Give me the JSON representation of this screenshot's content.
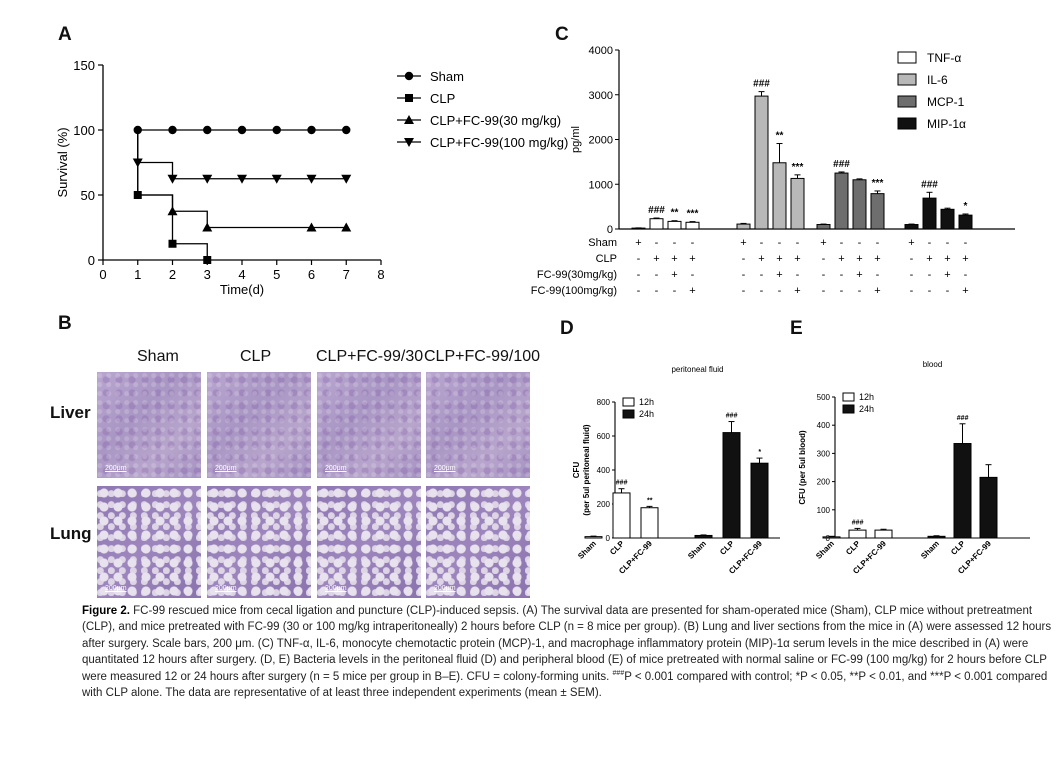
{
  "panels": {
    "a": "A",
    "b": "B",
    "c": "C",
    "d": "D",
    "e": "E"
  },
  "survival": {
    "chart_data": {
      "type": "line",
      "title": "",
      "xlabel": "Time(d)",
      "ylabel": "Survival (%)",
      "xlim": [
        0,
        8
      ],
      "ylim": [
        0,
        150
      ],
      "x_ticks": [
        "0",
        "1",
        "2",
        "3",
        "4",
        "5",
        "6",
        "7",
        "8"
      ],
      "y_ticks": [
        "0",
        "50",
        "100",
        "150"
      ],
      "series": [
        {
          "name": "Sham",
          "marker": "circle",
          "steps": [
            [
              1,
              100
            ],
            [
              7,
              100
            ]
          ],
          "points": [
            [
              1,
              100
            ],
            [
              2,
              100
            ],
            [
              3,
              100
            ],
            [
              4,
              100
            ],
            [
              5,
              100
            ],
            [
              6,
              100
            ],
            [
              7,
              100
            ]
          ]
        },
        {
          "name": "CLP",
          "marker": "square",
          "steps": [
            [
              1,
              100
            ],
            [
              1,
              50
            ],
            [
              2,
              50
            ],
            [
              2,
              12.5
            ],
            [
              3,
              12.5
            ],
            [
              3,
              0
            ]
          ],
          "points": [
            [
              1,
              50
            ],
            [
              2,
              12.5
            ],
            [
              3,
              0
            ]
          ]
        },
        {
          "name": "CLP+FC-99(30 mg/kg)",
          "marker": "triangle-up",
          "steps": [
            [
              1,
              100
            ],
            [
              1,
              50
            ],
            [
              2,
              50
            ],
            [
              2,
              37.5
            ],
            [
              3,
              37.5
            ],
            [
              3,
              25
            ],
            [
              7,
              25
            ]
          ],
          "points": [
            [
              2,
              37.5
            ],
            [
              3,
              25
            ],
            [
              6,
              25
            ],
            [
              7,
              25
            ]
          ]
        },
        {
          "name": "CLP+FC-99(100 mg/kg)",
          "marker": "triangle-down",
          "steps": [
            [
              1,
              100
            ],
            [
              1,
              75
            ],
            [
              2,
              75
            ],
            [
              2,
              62.5
            ],
            [
              7,
              62.5
            ]
          ],
          "points": [
            [
              1,
              75
            ],
            [
              2,
              62.5
            ],
            [
              3,
              62.5
            ],
            [
              4,
              62.5
            ],
            [
              5,
              62.5
            ],
            [
              6,
              62.5
            ],
            [
              7,
              62.5
            ]
          ]
        }
      ]
    }
  },
  "cytokines": {
    "chart_data": {
      "type": "bar",
      "ylabel": "pg/ml",
      "ylim": [
        0,
        4000
      ],
      "y_ticks": [
        "0",
        "1000",
        "2000",
        "3000",
        "4000"
      ],
      "series": [
        {
          "name": "TNF-α",
          "fill": "#ffffff",
          "values": [
            20,
            230,
            170,
            150
          ],
          "err": [
            5,
            15,
            15,
            15
          ],
          "sig": [
            "",
            "###",
            "**",
            "***"
          ]
        },
        {
          "name": "IL-6",
          "fill": "#b8b8b8",
          "values": [
            110,
            2970,
            1480,
            1130
          ],
          "err": [
            15,
            100,
            430,
            80
          ],
          "sig": [
            "",
            "###",
            "**",
            "***"
          ]
        },
        {
          "name": "MCP-1",
          "fill": "#6e6e6e",
          "values": [
            100,
            1250,
            1100,
            790
          ],
          "err": [
            10,
            25,
            20,
            60
          ],
          "sig": [
            "",
            "###",
            "",
            "***"
          ]
        },
        {
          "name": "MIP-1α",
          "fill": "#111111",
          "values": [
            100,
            690,
            440,
            310
          ],
          "err": [
            10,
            130,
            25,
            25
          ],
          "sig": [
            "",
            "###",
            "",
            "*"
          ]
        }
      ],
      "row_labels": [
        "Sham",
        "CLP",
        "FC-99(30mg/kg)",
        "FC-99(100mg/kg)"
      ],
      "treatment_signs": [
        [
          "+",
          "-",
          "-",
          "-"
        ],
        [
          "-",
          "+",
          "+",
          "+"
        ],
        [
          "-",
          "-",
          "+",
          "-"
        ],
        [
          "-",
          "-",
          "-",
          "+"
        ]
      ]
    }
  },
  "histology": {
    "columns": [
      "Sham",
      "CLP",
      "CLP+FC-99/30",
      "CLP+FC-99/100"
    ],
    "rows": [
      "Liver",
      "Lung"
    ],
    "scale_bar": "200μm"
  },
  "peritoneal": {
    "chart_data": {
      "type": "bar",
      "title": "peritoneal fluid",
      "ylabel": "CFU",
      "ylabel2": "(per 5ul peritoneal fluid)",
      "ylim": [
        0,
        800
      ],
      "y_ticks": [
        "0",
        "200",
        "400",
        "600",
        "800"
      ],
      "categories": [
        "Sham",
        "CLP",
        "CLP+FC-99"
      ],
      "series": [
        {
          "name": "12h",
          "fill": "#ffffff",
          "values": [
            8,
            265,
            178
          ],
          "err": [
            3,
            25,
            8
          ],
          "sig": [
            "",
            "###",
            "**"
          ]
        },
        {
          "name": "24h",
          "fill": "#111111",
          "values": [
            15,
            620,
            440
          ],
          "err": [
            3,
            65,
            30
          ],
          "sig": [
            "",
            "###",
            "*"
          ]
        }
      ]
    }
  },
  "blood": {
    "chart_data": {
      "type": "bar",
      "title": "blood",
      "ylabel": "CFU (per 5ul blood)",
      "ylim": [
        0,
        500
      ],
      "y_ticks": [
        "0",
        "100",
        "200",
        "300",
        "400",
        "500"
      ],
      "categories": [
        "Sham",
        "CLP",
        "CLP+FC-99"
      ],
      "series": [
        {
          "name": "12h",
          "fill": "#ffffff",
          "values": [
            4,
            28,
            28
          ],
          "err": [
            2,
            6,
            3
          ],
          "sig": [
            "",
            "###",
            ""
          ]
        },
        {
          "name": "24h",
          "fill": "#111111",
          "values": [
            6,
            335,
            215
          ],
          "err": [
            2,
            70,
            45
          ],
          "sig": [
            "",
            "###",
            ""
          ]
        }
      ]
    }
  },
  "caption": {
    "lead": "Figure 2.",
    "text": "FC-99 rescued mice from cecal ligation and puncture (CLP)-induced sepsis. (A) The survival data are presented for sham-operated mice (Sham), CLP mice without pretreatment (CLP), and mice pretreated with FC-99 (30 or 100 mg/kg intraperitoneally) 2 hours before CLP (n = 8 mice per group). (B) Lung and liver sections from the mice in (A) were assessed 12 hours after surgery. Scale bars, 200 μm. (C) TNF-α, IL-6, monocyte chemotactic protein (MCP)-1, and macrophage inflammatory protein (MIP)-1α serum levels in the mice described in (A) were quantitated 12 hours after surgery. (D, E) Bacteria levels in the peritoneal fluid (D) and peripheral blood (E) of mice pretreated with normal saline or FC-99 (100 mg/kg) for 2 hours before CLP were measured 12 or 24 hours after surgery (n = 5 mice per group in B–E). CFU = colony-forming units.",
    "sig_mark": "###",
    "text2": "P < 0.001 compared with control; *P < 0.05, **P < 0.01, and ***P < 0.001 compared with CLP alone. The data are representative of at least three independent experiments (mean ± SEM)."
  }
}
